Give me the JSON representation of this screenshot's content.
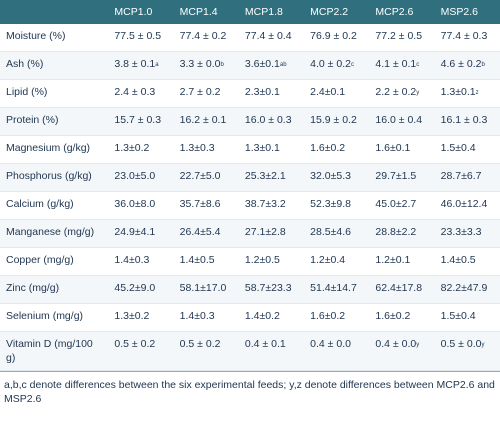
{
  "table": {
    "header": [
      "MCP1.0",
      "MCP1.4",
      "MCP1.8",
      "MCP2.2",
      "MCP2.6",
      "MSP2.6"
    ],
    "rows": [
      {
        "label": "Moisture (%)",
        "cells": [
          {
            "text": "77.5 ± 0.5"
          },
          {
            "text": "77.4 ± 0.2"
          },
          {
            "text": "77.4 ± 0.4"
          },
          {
            "text": "76.9 ± 0.2"
          },
          {
            "text": "77.2 ± 0.5"
          },
          {
            "text": "77.4 ± 0.3"
          }
        ]
      },
      {
        "label": "Ash (%)",
        "cells": [
          {
            "text": "3.8 ± 0.1",
            "sup": "a"
          },
          {
            "text": "3.3 ± 0.0",
            "sup": "b"
          },
          {
            "text": "3.6±0.1",
            "sup": "ab"
          },
          {
            "text": "4.0 ± 0.2",
            "sup": "c"
          },
          {
            "text": "4.1 ± 0.1",
            "sup": "c"
          },
          {
            "text": "4.6 ± 0.2",
            "sup": "b"
          }
        ]
      },
      {
        "label": "Lipid (%)",
        "cells": [
          {
            "text": "2.4 ± 0.3"
          },
          {
            "text": "2.7 ± 0.2"
          },
          {
            "text": "2.3±0.1"
          },
          {
            "text": "2.4±0.1"
          },
          {
            "text": "2.2 ± 0.2",
            "sup": "y"
          },
          {
            "text": "1.3±0.1",
            "sup": "z"
          }
        ]
      },
      {
        "label": "Protein (%)",
        "cells": [
          {
            "text": "15.7 ± 0.3"
          },
          {
            "text": "16.2 ± 0.1"
          },
          {
            "text": "16.0 ± 0.3"
          },
          {
            "text": "15.9 ± 0.2"
          },
          {
            "text": "16.0 ± 0.4"
          },
          {
            "text": "16.1 ± 0.3"
          }
        ]
      },
      {
        "label": "Magnesium (g/kg)",
        "cells": [
          {
            "text": "1.3±0.2"
          },
          {
            "text": "1.3±0.3"
          },
          {
            "text": "1.3±0.1"
          },
          {
            "text": "1.6±0.2"
          },
          {
            "text": "1.6±0.1"
          },
          {
            "text": "1.5±0.4"
          }
        ]
      },
      {
        "label": "Phosphorus (g/kg)",
        "cells": [
          {
            "text": "23.0±5.0"
          },
          {
            "text": "22.7±5.0"
          },
          {
            "text": "25.3±2.1"
          },
          {
            "text": "32.0±5.3"
          },
          {
            "text": "29.7±1.5"
          },
          {
            "text": "28.7±6.7"
          }
        ]
      },
      {
        "label": "Calcium (g/kg)",
        "cells": [
          {
            "text": "36.0±8.0"
          },
          {
            "text": "35.7±8.6"
          },
          {
            "text": "38.7±3.2"
          },
          {
            "text": "52.3±9.8"
          },
          {
            "text": "45.0±2.7"
          },
          {
            "text": "46.0±12.4"
          }
        ]
      },
      {
        "label": "Manganese (mg/g)",
        "cells": [
          {
            "text": "24.9±4.1"
          },
          {
            "text": "26.4±5.4"
          },
          {
            "text": "27.1±2.8"
          },
          {
            "text": "28.5±4.6"
          },
          {
            "text": "28.8±2.2"
          },
          {
            "text": "23.3±3.3"
          }
        ]
      },
      {
        "label": "Copper (mg/g)",
        "cells": [
          {
            "text": "1.4±0.3"
          },
          {
            "text": "1.4±0.5"
          },
          {
            "text": "1.2±0.5"
          },
          {
            "text": "1.2±0.4"
          },
          {
            "text": "1.2±0.1"
          },
          {
            "text": "1.4±0.5"
          }
        ]
      },
      {
        "label": "Zinc (mg/g)",
        "cells": [
          {
            "text": "45.2±9.0"
          },
          {
            "text": "58.1±17.0"
          },
          {
            "text": "58.7±23.3"
          },
          {
            "text": "51.4±14.7"
          },
          {
            "text": "62.4±17.8"
          },
          {
            "text": "82.2±47.9"
          }
        ]
      },
      {
        "label": "Selenium (mg/g)",
        "cells": [
          {
            "text": "1.3±0.2"
          },
          {
            "text": "1.4±0.3"
          },
          {
            "text": "1.4±0.2"
          },
          {
            "text": "1.6±0.2"
          },
          {
            "text": "1.6±0.2"
          },
          {
            "text": "1.5±0.4"
          }
        ]
      },
      {
        "label": "Vitamin D (mg/100 g)",
        "cells": [
          {
            "text": "0.5 ± 0.2"
          },
          {
            "text": "0.5 ± 0.2"
          },
          {
            "text": "0.4 ± 0.1"
          },
          {
            "text": "0.4 ± 0.0"
          },
          {
            "text": "0.4 ± 0.0",
            "sup": "y"
          },
          {
            "text": "0.5 ± 0.0",
            "sup": "y"
          }
        ]
      }
    ],
    "footnote": "a,b,c denote differences between the six experimental feeds; y,z denote differences between MCP2.6 and MSP2.6"
  }
}
